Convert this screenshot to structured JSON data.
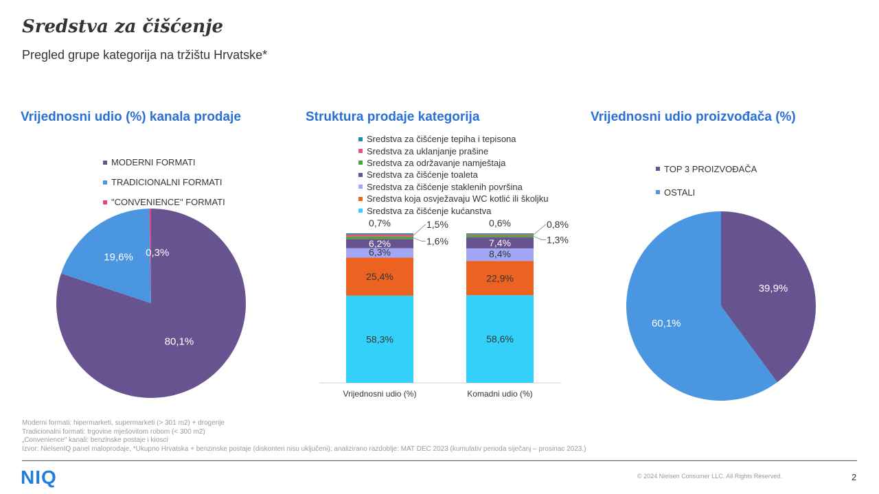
{
  "header": {
    "title": "Sredstva za čišćenje",
    "subtitle": "Pregled grupe kategorija na tržištu Hrvatske*"
  },
  "sections": {
    "left_title": "Vrijednosni  udio (%) kanala prodaje",
    "middle_title": "Struktura prodaje kategorija",
    "right_title": "Vrijednosni  udio proizvođača (%)"
  },
  "chart_data": [
    {
      "type": "pie",
      "title": "Vrijednosni  udio (%) kanala prodaje",
      "slices": [
        {
          "name": "MODERNI FORMATI",
          "value": 80.1,
          "label": "80,1%",
          "color": "#66538f"
        },
        {
          "name": "TRADICIONALNI FORMATI",
          "value": 19.6,
          "label": "19,6%",
          "color": "#4a96e0"
        },
        {
          "name": "\"CONVENIENCE\" FORMATI",
          "value": 0.3,
          "label": "0,3%",
          "color": "#d94a78"
        }
      ]
    },
    {
      "type": "bar",
      "stacked": true,
      "title": "Struktura prodaje kategorija",
      "categories": [
        "Vrijednosni udio (%)",
        "Komadni udio (%)"
      ],
      "ylim": [
        0,
        100
      ],
      "series": [
        {
          "name": "Sredstva za čišćenje kućanstva",
          "color": "#33d1fa",
          "values": [
            58.3,
            58.6
          ],
          "labels": [
            "58,3%",
            "58,6%"
          ]
        },
        {
          "name": "Sredstva koja osvježavaju WC kotlić ili školjku",
          "color": "#ec6220",
          "values": [
            25.4,
            22.9
          ],
          "labels": [
            "25,4%",
            "22,9%"
          ]
        },
        {
          "name": "Sredstva za čišćenje staklenih površina",
          "color": "#a3a6f2",
          "values": [
            6.3,
            8.4
          ],
          "labels": [
            "6,3%",
            "8,4%"
          ]
        },
        {
          "name": "Sredstva za čišćenje toaleta",
          "color": "#66538f",
          "values": [
            6.2,
            7.4
          ],
          "labels": [
            "6,2%",
            "7,4%"
          ]
        },
        {
          "name": "Sredstva za održavanje namještaja",
          "color": "#4aa832",
          "values": [
            1.6,
            1.3
          ],
          "labels": [
            "1,6%",
            "1,3%"
          ]
        },
        {
          "name": "Sredstva za uklanjanje prašine",
          "color": "#e6537f",
          "values": [
            1.5,
            0.8
          ],
          "labels": [
            "1,5%",
            "0,8%"
          ]
        },
        {
          "name": "Sredstva za čišćenje tepiha i tepisona",
          "color": "#1a8fa8",
          "values": [
            0.7,
            0.6
          ],
          "labels": [
            "0,7%",
            "0,6%"
          ]
        }
      ]
    },
    {
      "type": "pie",
      "title": "Vrijednosni  udio proizvođača (%)",
      "slices": [
        {
          "name": "TOP 3 PROIZVOĐAČA",
          "value": 39.9,
          "label": "39,9%",
          "color": "#66538f"
        },
        {
          "name": "OSTALI",
          "value": 60.1,
          "label": "60,1%",
          "color": "#4a96e0"
        }
      ]
    }
  ],
  "notes": [
    "Moderni formati: hipermarketi, supermarketi (> 301 m2) + drogerije",
    "Tradicionalni formati: trgovine mješovitom robom (< 300 m2)",
    "„Convenience\" kanali: benzinske postaje i kiosci",
    "Izvor: NielsenIQ panel maloprodaje, *Ukupno Hrvatska + benzinske postaje (diskonteri nisu uključeni); analizirano razdoblje: MAT DEC 2023 (kumulativ perioda siječanj – prosinac 2023.)"
  ],
  "footer": {
    "logo": "NIQ",
    "copyright": "© 2024 Nielsen Consumer LLC. All Rights Reserved.",
    "page_number": "2"
  }
}
